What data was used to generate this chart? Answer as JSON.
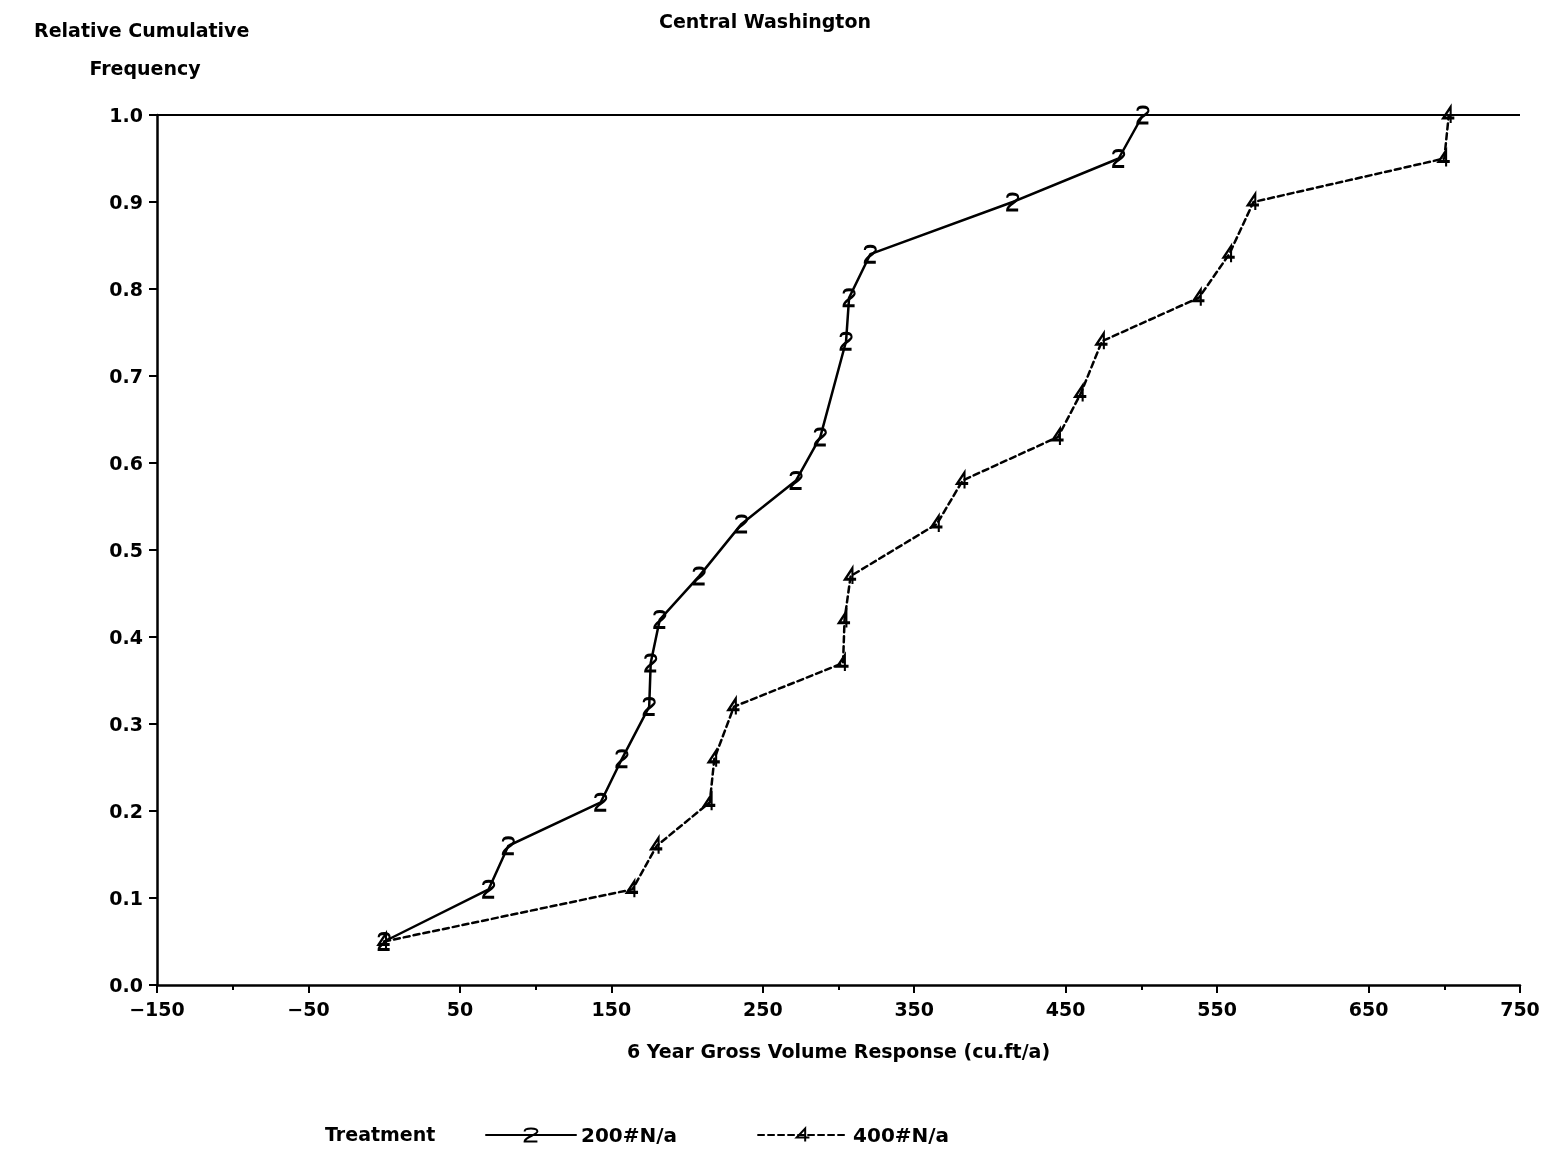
{
  "chart_data": {
    "type": "line",
    "title": "Central Washington",
    "xlabel": "6 Year Gross Volume Response (cu.ft/a)",
    "ylabel": "Relative Cumulative Frequency",
    "legend_title": "Treatment",
    "legend": "bottom",
    "grid": false,
    "xlim": [
      -150,
      750
    ],
    "xticks": [
      -150,
      -50,
      50,
      150,
      250,
      350,
      450,
      550,
      650,
      750
    ],
    "ylim": [
      0,
      1
    ],
    "yticks": [
      {
        "value": 0,
        "label": "0.0"
      },
      {
        "value": 0.1,
        "label": "0.1"
      },
      {
        "value": 0.2,
        "label": "0.2"
      },
      {
        "value": 0.3,
        "label": "0.3"
      },
      {
        "value": 0.4,
        "label": "0.4"
      },
      {
        "value": 0.5,
        "label": "0.5"
      },
      {
        "value": 0.6,
        "label": "0.6"
      },
      {
        "value": 0.7,
        "label": "0.7"
      },
      {
        "value": 0.8,
        "label": "0.8"
      },
      {
        "value": 0.9,
        "label": "0.9"
      },
      {
        "value": 1,
        "label": "1.0"
      }
    ],
    "ref_lines": [
      {
        "axis": "y",
        "value": 1,
        "color": "#000000",
        "line_style": "solid"
      }
    ],
    "series": [
      {
        "name": "200#N/a",
        "color": "#000000",
        "line_style": "solid",
        "marker": "cross",
        "x": [
          0,
          69,
          82,
          143,
          157,
          175,
          176,
          182,
          208,
          236,
          272,
          288,
          305,
          307,
          321,
          415,
          485,
          501
        ],
        "values": [
          0.05,
          0.11,
          0.16,
          0.21,
          0.26,
          0.32,
          0.37,
          0.42,
          0.47,
          0.53,
          0.58,
          0.63,
          0.74,
          0.79,
          0.84,
          0.9,
          0.95,
          1.0
        ]
      },
      {
        "name": "400#N/a",
        "color": "#000000",
        "line_style": "dashed",
        "marker": "cross",
        "x": [
          0,
          164,
          180,
          215,
          218,
          231,
          303,
          304,
          308,
          365,
          382,
          445,
          460,
          474,
          538,
          558,
          574,
          700,
          703
        ],
        "values": [
          0.05,
          0.11,
          0.16,
          0.21,
          0.26,
          0.32,
          0.37,
          0.42,
          0.47,
          0.53,
          0.58,
          0.63,
          0.68,
          0.74,
          0.79,
          0.84,
          0.9,
          0.95,
          1.0
        ]
      }
    ]
  }
}
